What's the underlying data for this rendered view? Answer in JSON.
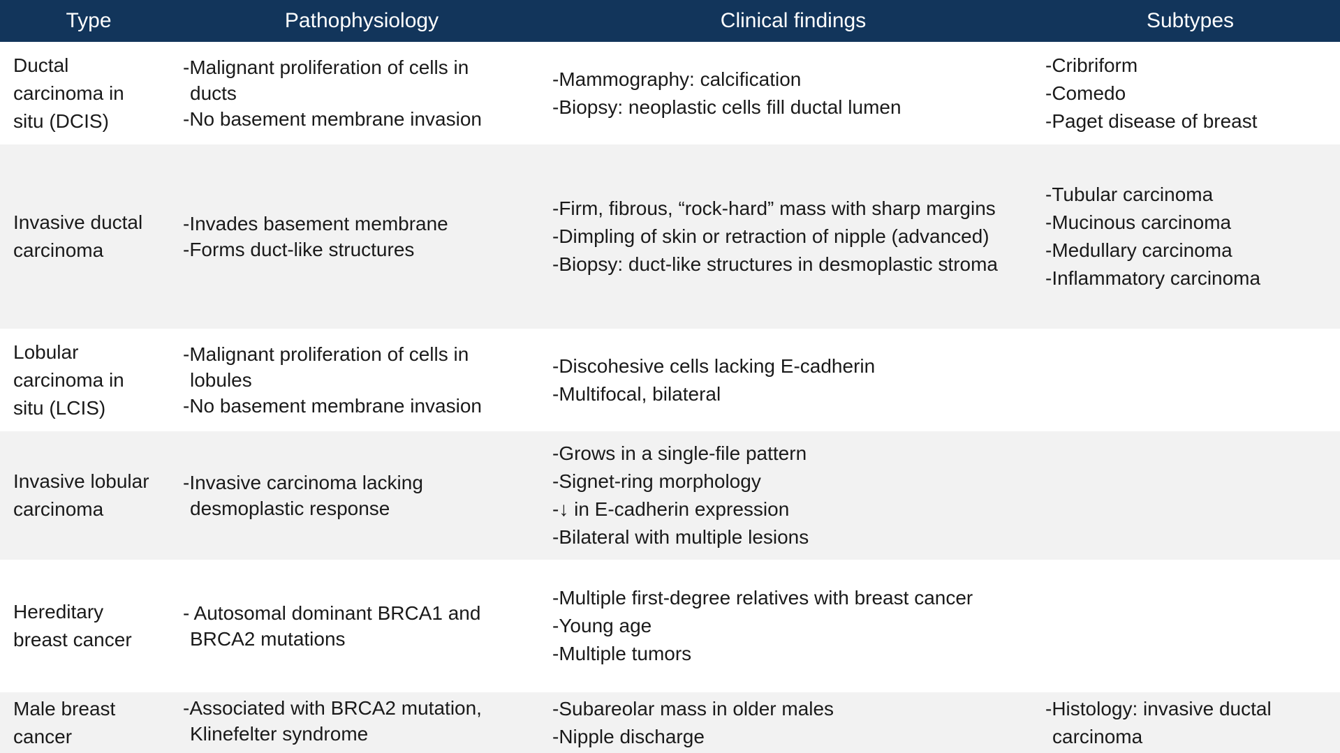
{
  "header": {
    "type": "Type",
    "pathophysiology": "Pathophysiology",
    "clinical": "Clinical findings",
    "subtypes": "Subtypes"
  },
  "rows": [
    {
      "type": [
        "Ductal",
        "carcinoma in",
        "situ (DCIS)"
      ],
      "path": [
        "-Malignant proliferation of cells in",
        "ducts",
        "-No basement membrane invasion"
      ],
      "clinical": [
        "-Mammography: calcification",
        "-Biopsy: neoplastic cells fill ductal lumen"
      ],
      "subtypes": [
        "-Cribriform",
        "-Comedo",
        "-Paget disease of breast"
      ]
    },
    {
      "type": [
        "Invasive ductal",
        "carcinoma"
      ],
      "path": [
        "-Invades basement membrane",
        "-Forms duct-like structures"
      ],
      "clinical": [
        "-Firm, fibrous, “rock-hard” mass with sharp margins",
        "-Dimpling of skin or retraction of nipple (advanced)",
        "-Biopsy: duct-like structures in desmoplastic stroma"
      ],
      "subtypes": [
        "-Tubular carcinoma",
        "-Mucinous carcinoma",
        "-Medullary carcinoma",
        "-Inflammatory carcinoma"
      ]
    },
    {
      "type": [
        "Lobular",
        "carcinoma in",
        "situ (LCIS)"
      ],
      "path": [
        "-Malignant proliferation of cells in",
        "lobules",
        "-No basement membrane invasion"
      ],
      "clinical": [
        "-Discohesive cells lacking E-cadherin",
        "-Multifocal, bilateral"
      ],
      "subtypes": []
    },
    {
      "type": [
        "Invasive lobular",
        "carcinoma"
      ],
      "path": [
        "-Invasive carcinoma lacking",
        "desmoplastic response"
      ],
      "clinical": [
        "-Grows in a single-file pattern",
        "-Signet-ring morphology",
        "-↓ in E-cadherin expression",
        "-Bilateral with multiple lesions"
      ],
      "subtypes": []
    },
    {
      "type": [
        "Hereditary",
        "breast cancer"
      ],
      "path": [
        "- Autosomal dominant BRCA1 and",
        "BRCA2 mutations"
      ],
      "clinical": [
        "-Multiple first-degree relatives with breast cancer",
        "-Young age",
        "-Multiple tumors"
      ],
      "subtypes": []
    },
    {
      "type": [
        "Male breast",
        "cancer"
      ],
      "path": [
        "-Associated with BRCA2 mutation,",
        "Klinefelter syndrome"
      ],
      "clinical": [
        "-Subareolar mass in older males",
        "-Nipple discharge"
      ],
      "subtypes": [
        "-Histology: invasive ductal",
        "carcinoma"
      ]
    }
  ]
}
